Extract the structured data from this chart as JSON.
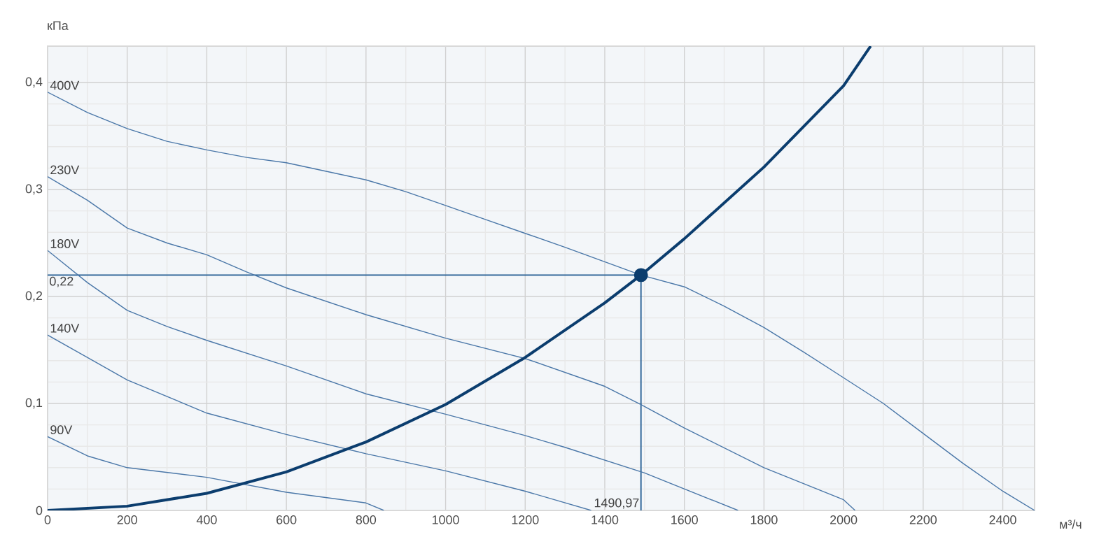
{
  "chart_data": {
    "type": "line",
    "xlabel": "м³/ч",
    "ylabel": "кПа",
    "xlim": [
      0,
      2480
    ],
    "ylim": [
      0,
      0.434
    ],
    "xticks": [
      0,
      200,
      400,
      600,
      800,
      1000,
      1200,
      1400,
      1600,
      1800,
      2000,
      2200,
      2400
    ],
    "yticks": [
      0,
      {
        "value": 0.1,
        "label": "0,1"
      },
      {
        "value": 0.2,
        "label": "0,2"
      },
      {
        "value": 0.3,
        "label": "0,3"
      },
      {
        "value": 0.4,
        "label": "0,4"
      }
    ],
    "grid": true,
    "series": [
      {
        "name": "400V",
        "color": "#4a77a8",
        "x": [
          0,
          100,
          200,
          300,
          400,
          500,
          600,
          700,
          800,
          900,
          1000,
          1100,
          1200,
          1300,
          1490.97,
          1600,
          1700,
          1800,
          1900,
          2000,
          2100,
          2200,
          2300,
          2400,
          2480
        ],
        "values": [
          0.391,
          0.372,
          0.357,
          0.345,
          0.337,
          0.33,
          0.325,
          0.317,
          0.309,
          0.298,
          0.285,
          0.272,
          0.259,
          0.246,
          0.22,
          0.209,
          0.191,
          0.171,
          0.148,
          0.124,
          0.1,
          0.072,
          0.044,
          0.018,
          0
        ]
      },
      {
        "name": "230V",
        "color": "#4a77a8",
        "x": [
          0,
          100,
          200,
          300,
          400,
          500,
          600,
          800,
          1000,
          1200,
          1400,
          1490.97,
          1600,
          1800,
          2000,
          2029
        ],
        "values": [
          0.312,
          0.29,
          0.264,
          0.25,
          0.239,
          0.223,
          0.208,
          0.183,
          0.161,
          0.142,
          0.116,
          0.099,
          0.077,
          0.04,
          0.01,
          0
        ]
      },
      {
        "name": "180V",
        "color": "#4a77a8",
        "x": [
          0,
          100,
          200,
          300,
          400,
          600,
          800,
          1000,
          1200,
          1300,
          1500,
          1735
        ],
        "values": [
          0.243,
          0.213,
          0.187,
          0.172,
          0.159,
          0.135,
          0.109,
          0.09,
          0.07,
          0.059,
          0.035,
          0
        ]
      },
      {
        "name": "140V",
        "color": "#4a77a8",
        "x": [
          0,
          200,
          400,
          600,
          800,
          1000,
          1200,
          1366
        ],
        "values": [
          0.164,
          0.122,
          0.091,
          0.071,
          0.053,
          0.037,
          0.018,
          0
        ]
      },
      {
        "name": "90V",
        "color": "#4a77a8",
        "x": [
          0,
          100,
          200,
          400,
          600,
          800,
          845
        ],
        "values": [
          0.069,
          0.051,
          0.04,
          0.031,
          0.017,
          0.007,
          0
        ]
      },
      {
        "color": "#0b3d6e",
        "x": [
          0,
          200,
          400,
          600,
          800,
          1000,
          1200,
          1400,
          1490.97,
          1600,
          1800,
          2000,
          2068
        ],
        "values": [
          0,
          0.004,
          0.016,
          0.036,
          0.064,
          0.099,
          0.143,
          0.194,
          0.22,
          0.254,
          0.321,
          0.397,
          0.434
        ]
      },
      {
        "type": "scatter",
        "marker": "circle",
        "color": "#0b3d6e",
        "x": [
          1490.97
        ],
        "values": [
          0.22
        ]
      }
    ],
    "ref_lines": [
      {
        "axis": "y",
        "value": 0.22,
        "label": "0,22",
        "color": "#1f5a91"
      },
      {
        "axis": "x",
        "value": 1490.97,
        "label": "1490,97",
        "color": "#1f5a91"
      }
    ]
  }
}
